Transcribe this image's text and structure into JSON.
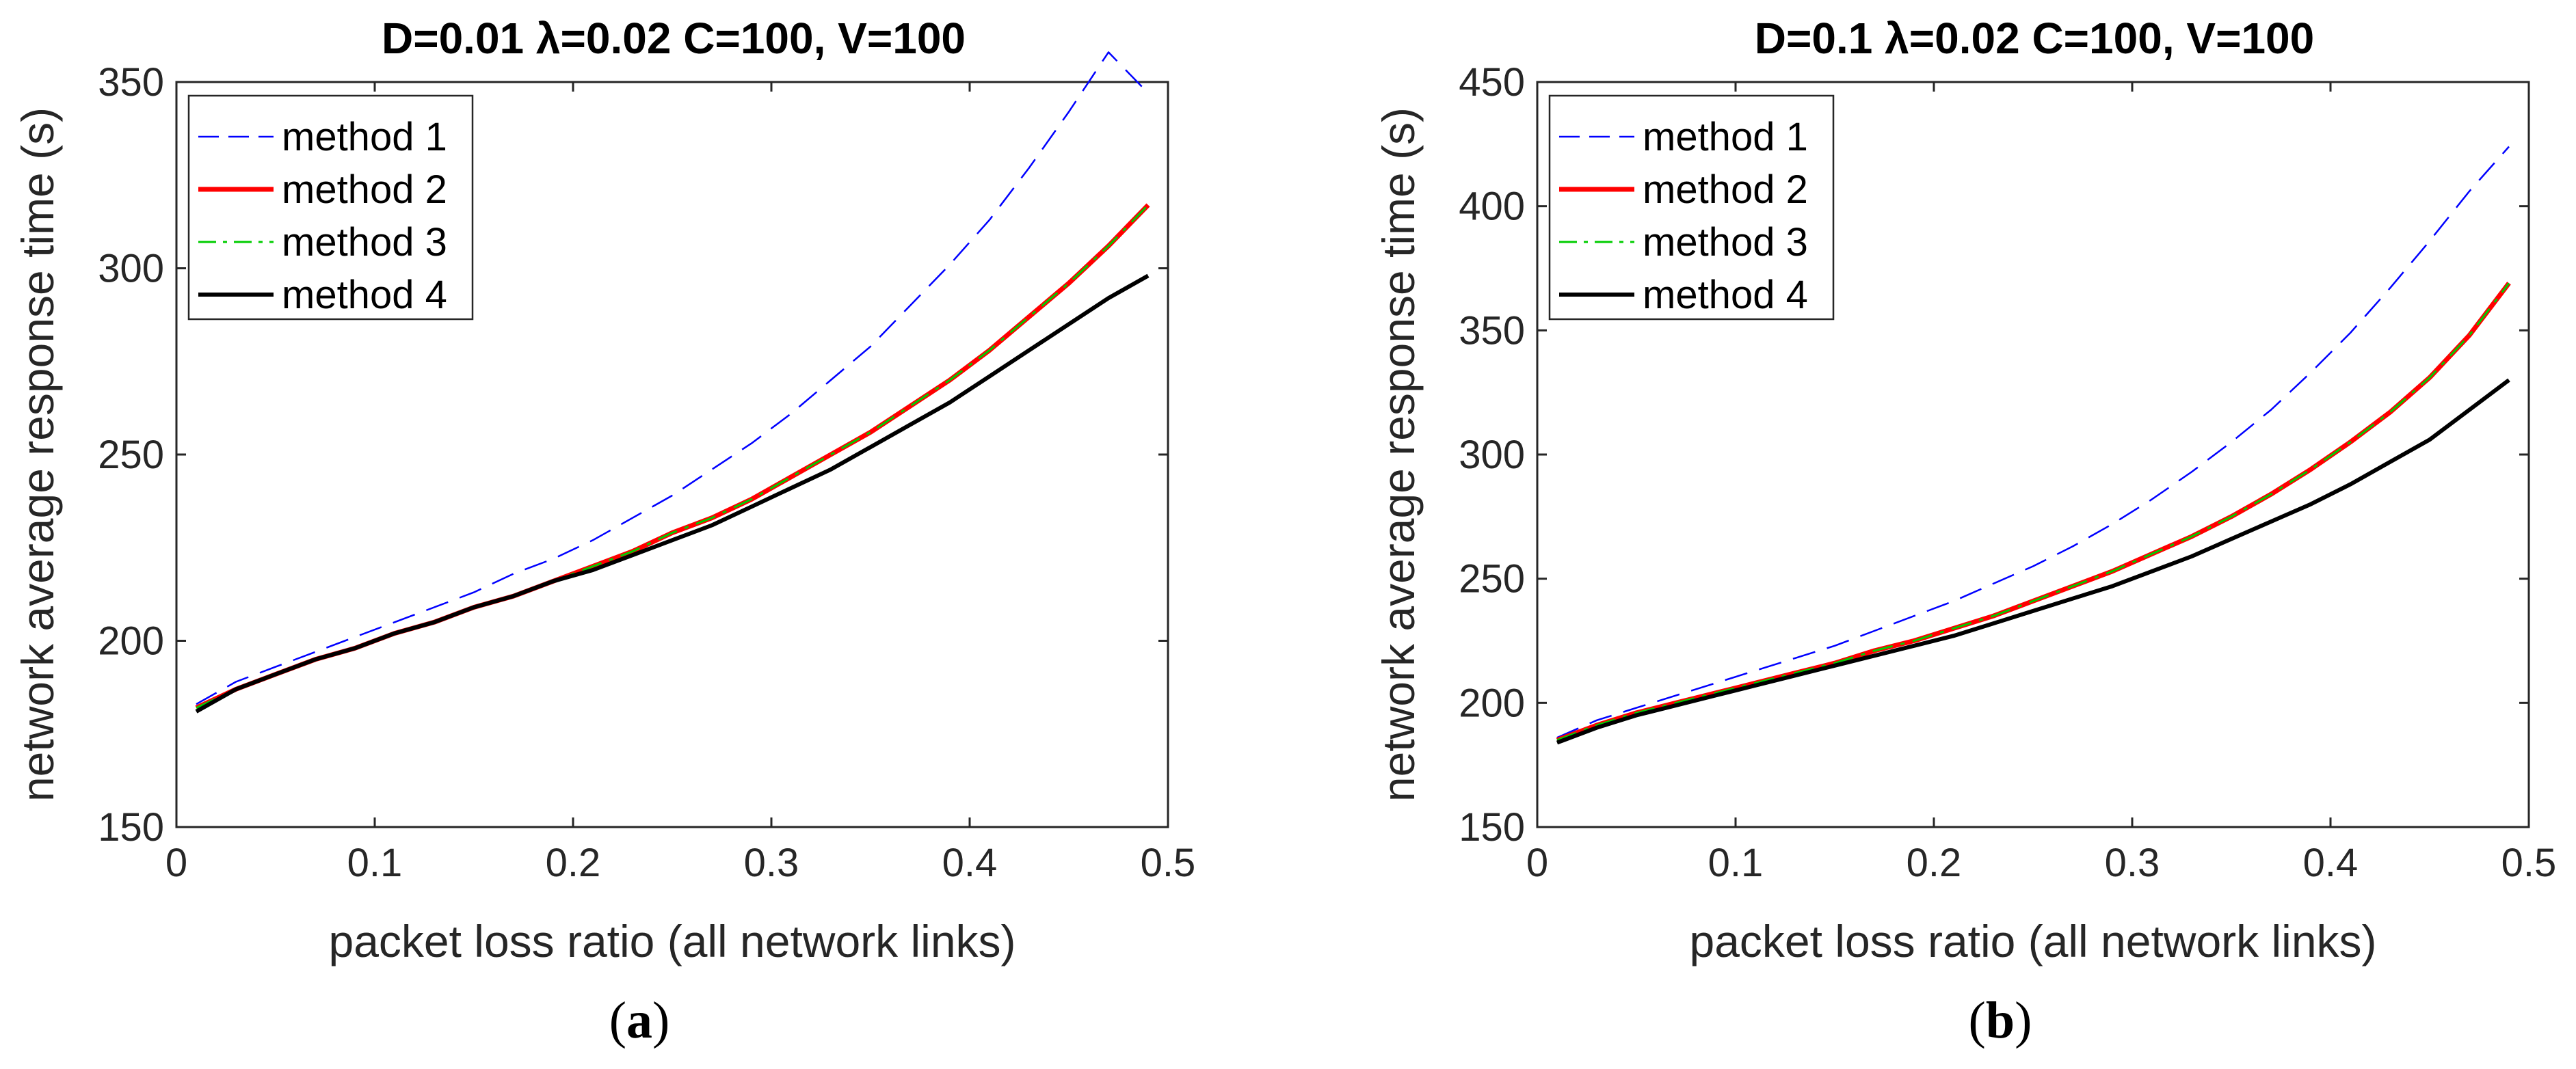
{
  "chart_data": [
    {
      "type": "line",
      "panel_label": "a",
      "title": "D=0.01 λ=0.02 C=100, V=100",
      "xlabel": "packet loss ratio (all network links)",
      "ylabel": "network average response time (s)",
      "xlim": [
        0,
        0.5
      ],
      "ylim": [
        150,
        350
      ],
      "xticks": [
        "0",
        "0.1",
        "0.2",
        "0.3",
        "0.4",
        "0.5"
      ],
      "yticks": [
        "150",
        "200",
        "250",
        "300",
        "350"
      ],
      "grid": false,
      "legend_position": "top-left",
      "x": [
        0.01,
        0.03,
        0.05,
        0.07,
        0.09,
        0.11,
        0.13,
        0.15,
        0.17,
        0.19,
        0.21,
        0.23,
        0.25,
        0.27,
        0.29,
        0.31,
        0.33,
        0.35,
        0.37,
        0.39,
        0.41,
        0.43,
        0.45,
        0.47,
        0.49
      ],
      "series": [
        {
          "name": "method 1",
          "color": "#0000ff",
          "style": "dashed",
          "values": [
            183,
            189,
            193,
            197,
            201,
            205,
            209,
            213,
            218,
            222,
            227,
            233,
            239,
            246,
            253,
            261,
            270,
            279,
            290,
            301,
            313,
            327,
            342,
            358,
            347
          ]
        },
        {
          "name": "method 2",
          "color": "#ff0000",
          "style": "solid",
          "values": [
            182,
            187,
            191,
            195,
            198,
            202,
            205,
            209,
            212,
            216,
            220,
            224,
            229,
            233,
            238,
            244,
            250,
            256,
            263,
            270,
            278,
            287,
            296,
            306,
            317
          ]
        },
        {
          "name": "method 3",
          "color": "#00cc00",
          "style": "dashdot",
          "values": [
            182,
            187,
            191,
            195,
            198,
            202,
            205,
            209,
            212,
            216,
            220,
            224,
            229,
            233,
            238,
            244,
            250,
            256,
            263,
            270,
            278,
            287,
            296,
            306,
            317
          ]
        },
        {
          "name": "method 4",
          "color": "#000000",
          "style": "solid",
          "values": [
            181,
            187,
            191,
            195,
            198,
            202,
            205,
            209,
            212,
            216,
            219,
            223,
            227,
            231,
            236,
            241,
            246,
            252,
            258,
            264,
            271,
            278,
            285,
            292,
            298
          ]
        }
      ]
    },
    {
      "type": "line",
      "panel_label": "b",
      "title": "D=0.1 λ=0.02 C=100, V=100",
      "xlabel": "packet loss ratio (all network links)",
      "ylabel": "network average response time (s)",
      "xlim": [
        0,
        0.5
      ],
      "ylim": [
        150,
        450
      ],
      "xticks": [
        "0",
        "0.1",
        "0.2",
        "0.3",
        "0.4",
        "0.5"
      ],
      "yticks": [
        "150",
        "200",
        "250",
        "300",
        "350",
        "400",
        "450"
      ],
      "grid": false,
      "legend_position": "top-left",
      "x": [
        0.01,
        0.03,
        0.05,
        0.07,
        0.09,
        0.11,
        0.13,
        0.15,
        0.17,
        0.19,
        0.21,
        0.23,
        0.25,
        0.27,
        0.29,
        0.31,
        0.33,
        0.35,
        0.37,
        0.39,
        0.41,
        0.43,
        0.45,
        0.47,
        0.49
      ],
      "series": [
        {
          "name": "method 1",
          "color": "#0000ff",
          "style": "dashed",
          "values": [
            186,
            193,
            198,
            203,
            208,
            213,
            218,
            223,
            229,
            235,
            241,
            248,
            255,
            263,
            272,
            282,
            293,
            305,
            318,
            333,
            349,
            367,
            386,
            406,
            424
          ]
        },
        {
          "name": "method 2",
          "color": "#ff0000",
          "style": "solid",
          "values": [
            185,
            191,
            196,
            200,
            204,
            208,
            212,
            216,
            221,
            225,
            230,
            235,
            241,
            247,
            253,
            260,
            267,
            275,
            284,
            294,
            305,
            317,
            331,
            348,
            369
          ]
        },
        {
          "name": "method 3",
          "color": "#00cc00",
          "style": "dashdot",
          "values": [
            185,
            191,
            196,
            200,
            204,
            208,
            212,
            216,
            221,
            225,
            230,
            235,
            241,
            247,
            253,
            260,
            267,
            275,
            284,
            294,
            305,
            317,
            331,
            348,
            369
          ]
        },
        {
          "name": "method 4",
          "color": "#000000",
          "style": "solid",
          "values": [
            184,
            190,
            195,
            199,
            203,
            207,
            211,
            215,
            219,
            223,
            227,
            232,
            237,
            242,
            247,
            253,
            259,
            266,
            273,
            280,
            288,
            297,
            306,
            318,
            330
          ]
        }
      ]
    }
  ]
}
